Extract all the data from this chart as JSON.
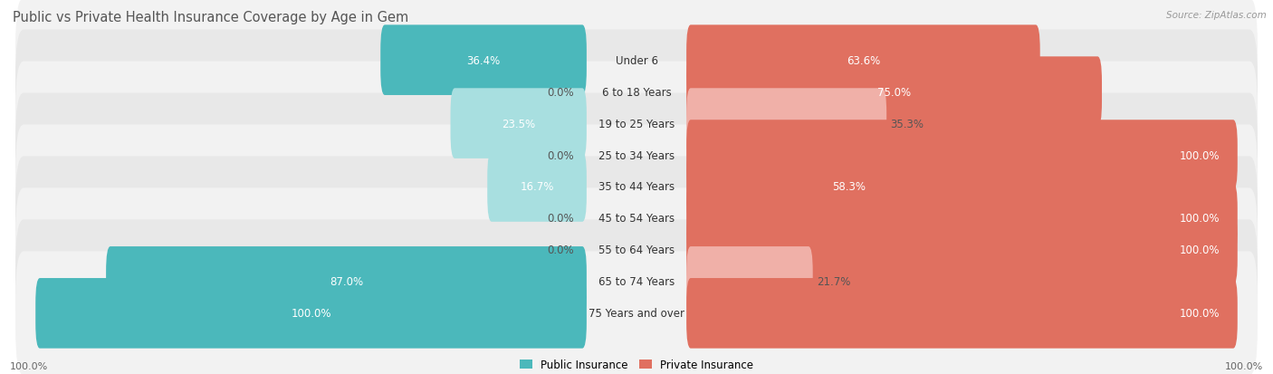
{
  "title": "Public vs Private Health Insurance Coverage by Age in Gem",
  "source": "Source: ZipAtlas.com",
  "categories": [
    "Under 6",
    "6 to 18 Years",
    "19 to 25 Years",
    "25 to 34 Years",
    "35 to 44 Years",
    "45 to 54 Years",
    "55 to 64 Years",
    "65 to 74 Years",
    "75 Years and over"
  ],
  "public_values": [
    36.4,
    0.0,
    23.5,
    0.0,
    16.7,
    0.0,
    0.0,
    87.0,
    100.0
  ],
  "private_values": [
    63.6,
    75.0,
    35.3,
    100.0,
    58.3,
    100.0,
    100.0,
    21.7,
    100.0
  ],
  "pub_dark": "#4bb8bb",
  "pub_light": "#a8dfe0",
  "priv_dark": "#e07060",
  "priv_light": "#f0b0a8",
  "row_bg_colors": [
    "#f2f2f2",
    "#e8e8e8",
    "#f2f2f2",
    "#e8e8e8",
    "#f2f2f2",
    "#e8e8e8",
    "#f2f2f2",
    "#e8e8e8",
    "#f2f2f2"
  ],
  "title_color": "#555555",
  "value_fontsize": 8.5,
  "title_fontsize": 10.5,
  "legend_fontsize": 8.5,
  "cat_fontsize": 8.5,
  "scale": 100.0,
  "bar_height": 0.62,
  "pub_threshold": 25.0,
  "priv_threshold": 50.0
}
